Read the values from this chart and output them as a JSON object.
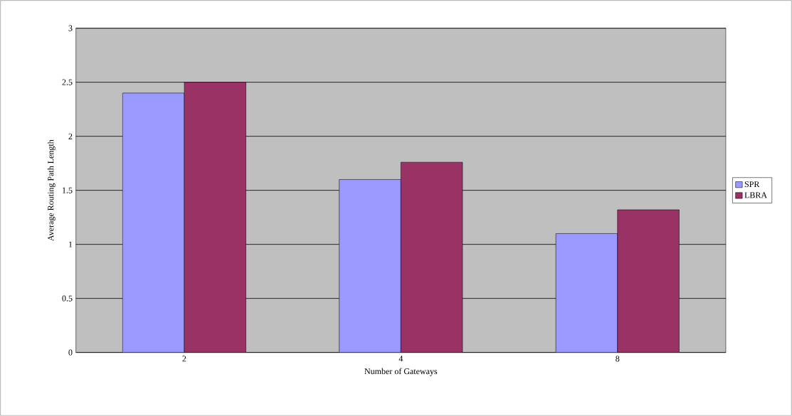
{
  "chart_data": {
    "type": "bar",
    "xlabel": "Number of Gateways",
    "ylabel": "Average Routing Path Length",
    "categories": [
      "2",
      "4",
      "8"
    ],
    "series": [
      {
        "name": "SPR",
        "color": "#9999ff",
        "values": [
          2.4,
          1.6,
          1.1
        ]
      },
      {
        "name": "LBRA",
        "color": "#993366",
        "values": [
          2.5,
          1.76,
          1.32
        ]
      }
    ],
    "ylim": [
      0,
      3
    ],
    "yticks": [
      0,
      0.5,
      1,
      1.5,
      2,
      2.5,
      3
    ],
    "grid": "y",
    "legend": "right"
  }
}
